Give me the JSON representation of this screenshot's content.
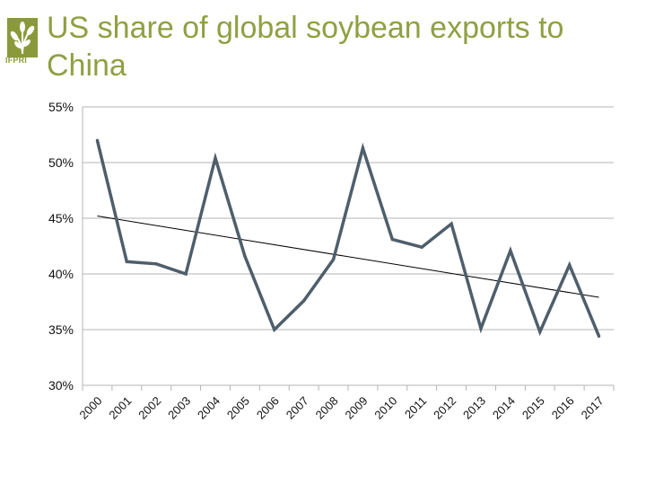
{
  "header": {
    "logo_text": "IFPRI",
    "title": "US share of global soybean exports to China"
  },
  "colors": {
    "title": "#8fa043",
    "series": "#4f5e6b",
    "trend": "#000000",
    "grid": "#b5b5b5"
  },
  "chart_data": {
    "type": "line",
    "title": "US share of global soybean exports to China",
    "xlabel": "",
    "ylabel": "",
    "ylim": [
      30,
      55
    ],
    "yticks": [
      30,
      35,
      40,
      45,
      50,
      55
    ],
    "ytick_labels": [
      "30%",
      "35%",
      "40%",
      "45%",
      "50%",
      "55%"
    ],
    "grid": true,
    "categories": [
      "2000",
      "2001",
      "2002",
      "2003",
      "2004",
      "2005",
      "2006",
      "2007",
      "2008",
      "2009",
      "2010",
      "2011",
      "2012",
      "2013",
      "2014",
      "2015",
      "2016",
      "2017"
    ],
    "series": [
      {
        "values": [
          52.0,
          41.1,
          40.9,
          40.0,
          50.4,
          41.6,
          35.0,
          37.6,
          41.3,
          51.3,
          43.1,
          42.4,
          44.5,
          35.1,
          42.1,
          34.8,
          40.8,
          34.4
        ]
      }
    ],
    "trendline": {
      "start": 45.2,
      "end": 37.9
    }
  }
}
